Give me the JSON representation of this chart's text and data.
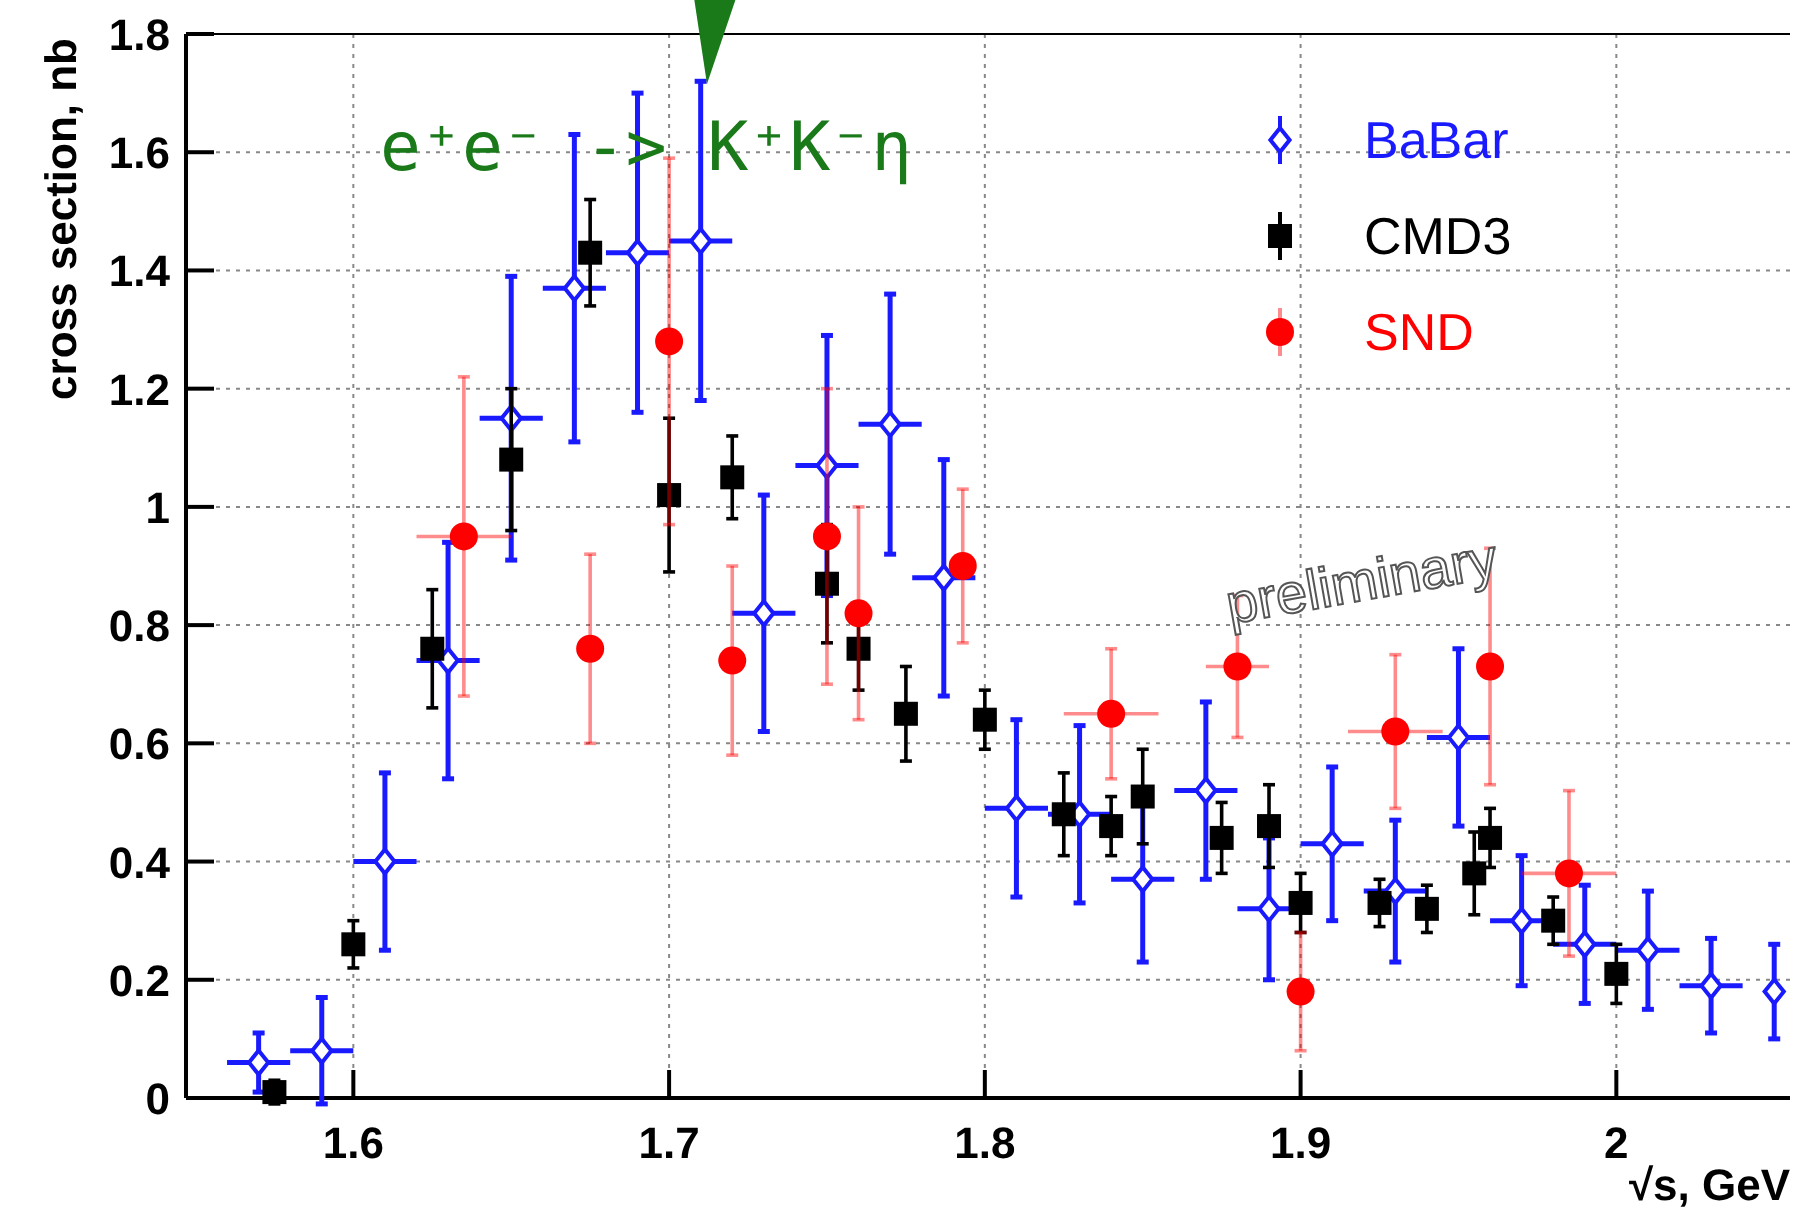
{
  "chart_data": {
    "type": "scatter",
    "xlabel": "√s, GeV",
    "ylabel": "cross section, nb",
    "xlim": [
      1.547,
      2.055
    ],
    "ylim": [
      0,
      1.8
    ],
    "xticks": [
      {
        "value": 1.6,
        "label": "1.6"
      },
      {
        "value": 1.7,
        "label": "1.7"
      },
      {
        "value": 1.8,
        "label": "1.8"
      },
      {
        "value": 1.9,
        "label": "1.9"
      },
      {
        "value": 2,
        "label": "2"
      }
    ],
    "yticks": [
      0,
      {
        "value": 0.2,
        "label": "0.2"
      },
      {
        "value": 0.4,
        "label": "0.4"
      },
      {
        "value": 0.6,
        "label": "0.6"
      },
      {
        "value": 0.8,
        "label": "0.8"
      },
      {
        "value": 1,
        "label": "1"
      },
      {
        "value": 1.2,
        "label": "1.2"
      },
      {
        "value": 1.4,
        "label": "1.4"
      },
      {
        "value": 1.6,
        "label": "1.6"
      },
      {
        "value": 1.8,
        "label": "1.8"
      }
    ],
    "grid": true,
    "legend": "top right",
    "annotations": [
      "e⁺e⁻ -> K⁺K⁻η",
      "preliminary"
    ],
    "series": [
      {
        "name": "BaBar",
        "color": "#1a1aff",
        "marker": "diamond",
        "x": [
          1.57,
          1.59,
          1.61,
          1.63,
          1.65,
          1.67,
          1.69,
          1.71,
          1.73,
          1.75,
          1.77,
          1.787,
          1.81,
          1.83,
          1.85,
          1.87,
          1.89,
          1.91,
          1.93,
          1.95,
          1.97,
          1.99,
          2.01,
          2.03,
          2.05
        ],
        "values": [
          0.06,
          0.08,
          0.4,
          0.74,
          1.15,
          1.37,
          1.43,
          1.45,
          0.82,
          1.07,
          1.14,
          0.88,
          0.49,
          0.48,
          0.37,
          0.52,
          0.32,
          0.43,
          0.35,
          0.61,
          0.3,
          0.26,
          0.25,
          0.19,
          0.18
        ],
        "errors": [
          0.05,
          0.09,
          0.15,
          0.2,
          0.24,
          0.26,
          0.27,
          0.27,
          0.2,
          0.22,
          0.22,
          0.2,
          0.15,
          0.15,
          0.14,
          0.15,
          0.12,
          0.13,
          0.12,
          0.15,
          0.11,
          0.1,
          0.1,
          0.08,
          0.08
        ],
        "xerrors": [
          0.01,
          0.01,
          0.01,
          0.01,
          0.01,
          0.01,
          0.01,
          0.01,
          0.01,
          0.01,
          0.01,
          0.01,
          0.01,
          0.01,
          0.01,
          0.01,
          0.01,
          0.01,
          0.01,
          0.01,
          0.01,
          0.01,
          0.01,
          0.01,
          null
        ]
      },
      {
        "name": "CMD3",
        "color": "#000000",
        "marker": "square",
        "x": [
          1.575,
          1.6,
          1.625,
          1.65,
          1.675,
          1.7,
          1.72,
          1.75,
          1.76,
          1.775,
          1.8,
          1.825,
          1.84,
          1.85,
          1.875,
          1.89,
          1.9,
          1.925,
          1.94,
          1.955,
          1.96,
          1.98,
          2.0
        ],
        "values": [
          0.01,
          0.26,
          0.76,
          1.08,
          1.43,
          1.02,
          1.05,
          0.87,
          0.76,
          0.65,
          0.64,
          0.48,
          0.46,
          0.51,
          0.44,
          0.46,
          0.33,
          0.33,
          0.32,
          0.38,
          0.44,
          0.3,
          0.21
        ],
        "errors": [
          0.02,
          0.04,
          0.1,
          0.12,
          0.09,
          0.13,
          0.07,
          0.1,
          0.07,
          0.08,
          0.05,
          0.07,
          0.05,
          0.08,
          0.06,
          0.07,
          0.05,
          0.04,
          0.04,
          0.07,
          0.05,
          0.04,
          0.05
        ]
      },
      {
        "name": "SND",
        "color": "#ff0000",
        "marker": "circle",
        "x": [
          1.635,
          1.675,
          1.7,
          1.72,
          1.75,
          1.76,
          1.793,
          1.84,
          1.88,
          1.9,
          1.93,
          1.96,
          1.985
        ],
        "values": [
          0.95,
          0.76,
          1.28,
          0.74,
          0.95,
          0.82,
          0.9,
          0.65,
          0.73,
          0.18,
          0.62,
          0.73,
          0.38
        ],
        "errors": [
          0.27,
          0.16,
          0.31,
          0.16,
          0.25,
          0.18,
          0.13,
          0.11,
          0.12,
          0.1,
          0.13,
          0.2,
          0.14
        ],
        "xerrors": [
          0.015,
          null,
          null,
          null,
          null,
          null,
          null,
          0.015,
          0.01,
          null,
          0.015,
          null,
          0.015
        ]
      }
    ]
  }
}
